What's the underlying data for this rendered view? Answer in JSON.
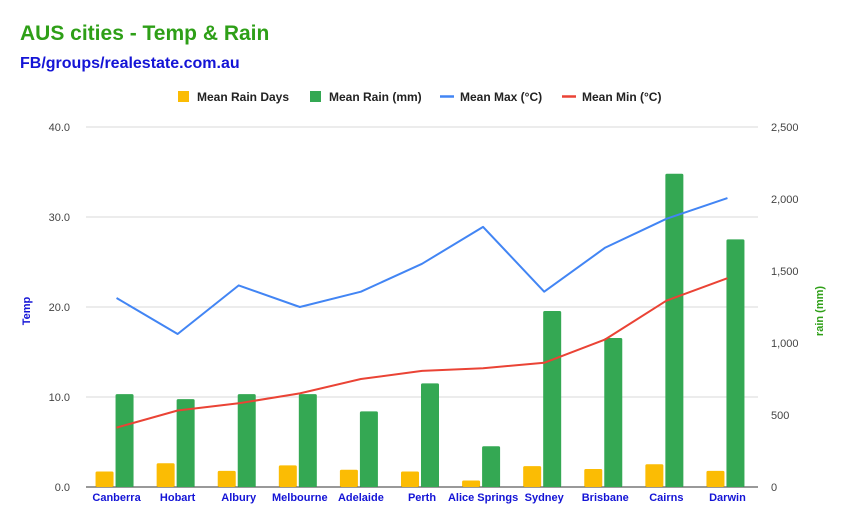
{
  "header": {
    "title": "AUS cities - Temp & Rain",
    "subtitle": "FB/groups/realestate.com.au"
  },
  "chart_data": {
    "type": "bar",
    "categories": [
      "Canberra",
      "Hobart",
      "Albury",
      "Melbourne",
      "Adelaide",
      "Perth",
      "Alice Springs",
      "Sydney",
      "Brisbane",
      "Cairns",
      "Darwin"
    ],
    "series": [
      {
        "name": "Mean Rain Days",
        "chart": "bar",
        "axis": "right",
        "color": "#fbbc04",
        "values": [
          108,
          165,
          112,
          150,
          120,
          108,
          45,
          145,
          125,
          158,
          112
        ]
      },
      {
        "name": "Mean Rain (mm)",
        "chart": "bar",
        "axis": "right",
        "color": "#34a853",
        "values": [
          645,
          610,
          645,
          645,
          525,
          720,
          283,
          1222,
          1035,
          2175,
          1720
        ]
      },
      {
        "name": "Mean Max (°C)",
        "chart": "line",
        "axis": "left",
        "color": "#4285f4",
        "values": [
          21.0,
          17.0,
          22.4,
          20.0,
          21.7,
          24.8,
          28.9,
          21.7,
          26.6,
          29.8,
          32.1
        ]
      },
      {
        "name": "Mean Min (°C)",
        "chart": "line",
        "axis": "left",
        "color": "#ea4335",
        "values": [
          6.6,
          8.5,
          9.3,
          10.4,
          12.0,
          12.9,
          13.2,
          13.8,
          16.4,
          20.7,
          23.2
        ]
      }
    ],
    "left_axis": {
      "label": "Temp",
      "color": "#1414d6",
      "range": [
        0,
        40
      ],
      "ticks": [
        "0.0",
        "10.0",
        "20.0",
        "30.0",
        "40.0"
      ]
    },
    "right_axis": {
      "label": "rain (mm)",
      "color": "#2e9f17",
      "range": [
        0,
        2500
      ],
      "ticks": [
        "0",
        "500",
        "1,000",
        "1,500",
        "2,000",
        "2,500"
      ]
    },
    "grid": true,
    "legend": "top-center"
  }
}
